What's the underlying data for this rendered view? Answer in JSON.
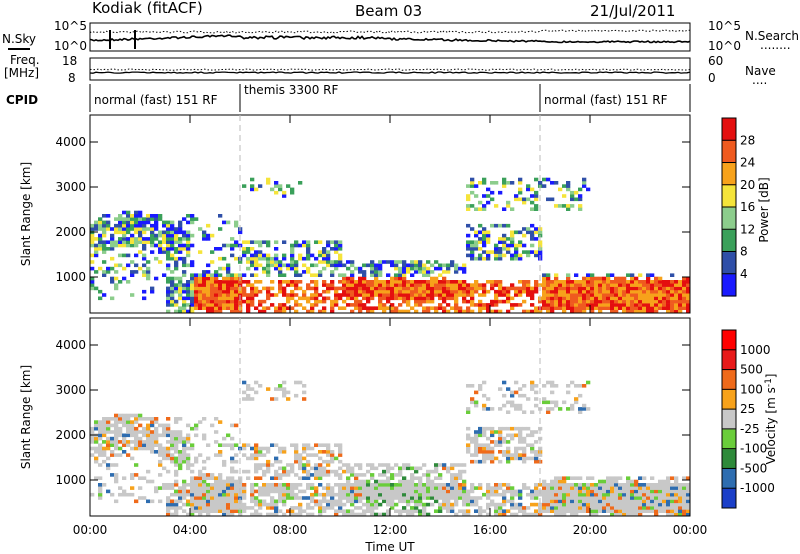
{
  "header": {
    "station": "Kodiak (fitACF)",
    "beam": "Beam 03",
    "date": "21/Jul/2011"
  },
  "panels": {
    "nsky_label": "N.Sky",
    "nsearch_label": "N.Search",
    "nsearch_dots": "........",
    "freq_label_line1": "Freq.",
    "freq_label_line2": "[MHz]",
    "nave_label": "Nave",
    "nave_dots": "....",
    "cpid_label": "CPID",
    "noise_left_ticks": [
      "10^5",
      "10^0"
    ],
    "noise_right_ticks": [
      "10^5",
      "10^0"
    ],
    "freq_left_ticks": [
      "18",
      "8"
    ],
    "freq_right_ticks": [
      "60",
      "0"
    ],
    "cpid_segments": [
      "normal (fast) 151 RF",
      "themis 3300 RF",
      "normal (fast) 151 RF"
    ]
  },
  "chart_data": [
    {
      "type": "heatmap",
      "title": "",
      "xlabel": "Time UT",
      "ylabel": "Slant Range [km]",
      "x_ticks": [
        "00:00",
        "04:00",
        "08:00",
        "12:00",
        "16:00",
        "20:00",
        "00:00"
      ],
      "y_ticks": [
        "1000",
        "2000",
        "3000",
        "4000"
      ],
      "ylim": [
        200,
        4600
      ],
      "colorbar_label": "Power [dB]",
      "colorbar_ticks": [
        "4",
        "8",
        "12",
        "16",
        "20",
        "24",
        "28"
      ],
      "colorbar_colors": [
        "#1a1aff",
        "#2f4fa8",
        "#3aa05a",
        "#8ccd8c",
        "#f5e43a",
        "#f7a21b",
        "#ef5a1f",
        "#e40f0f"
      ],
      "mode_change_times_hours": [
        6.0,
        18.0
      ]
    },
    {
      "type": "heatmap",
      "title": "",
      "xlabel": "Time UT",
      "ylabel": "Slant Range [km]",
      "x_ticks": [
        "00:00",
        "04:00",
        "08:00",
        "12:00",
        "16:00",
        "20:00",
        "00:00"
      ],
      "y_ticks": [
        "1000",
        "2000",
        "3000",
        "4000"
      ],
      "ylim": [
        200,
        4600
      ],
      "colorbar_label": "Velocity [m s^-1]",
      "colorbar_ticks": [
        "1000",
        "500",
        "100",
        "25",
        "-25",
        "-100",
        "-500",
        "-1000"
      ],
      "colorbar_colors": [
        "#1b3fc8",
        "#2e6db0",
        "#2e8a3a",
        "#6acd3a",
        "#c8c8c8",
        "#f7a21b",
        "#ef6a1a",
        "#e81a1a",
        "#ff0000"
      ],
      "mode_change_times_hours": [
        6.0,
        18.0
      ]
    }
  ]
}
